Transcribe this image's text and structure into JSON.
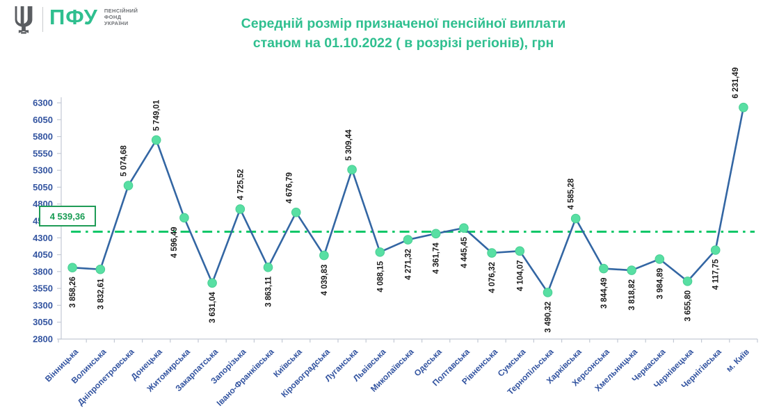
{
  "logo": {
    "abbr": "ПФУ",
    "name_line1": "ПЕНСІЙНИЙ",
    "name_line2": "ФОНД",
    "name_line3": "УКРАЇНИ"
  },
  "title": {
    "line1": "Середній розмір призначеної пенсійної виплати",
    "line2": "станом на 01.10.2022 ( в розрізі регіонів), грн"
  },
  "colors": {
    "title_green": "#2FBF8F",
    "axis_label_blue": "#3354A0",
    "series_line_blue": "#3366A3",
    "marker_mint": "#58DFA3",
    "average_dash_green": "#0FC768",
    "average_box_border_green": "#1E9B56",
    "average_box_text_green": "#169B52",
    "data_label_black": "#1b1b1b",
    "axis_gray": "#c3c9d4"
  },
  "chart_data": {
    "type": "line",
    "title": "Середній розмір призначеної пенсійної виплати станом на 01.10.2022 ( в розрізі регіонів), грн",
    "categories": [
      "Вінницька",
      "Волинська",
      "Дніпропетровська",
      "Донецька",
      "Житомирська",
      "Закарпатська",
      "Запорізька",
      "Івано-Франківська",
      "Київська",
      "Кіровоградська",
      "Луганська",
      "Львівська",
      "Миколаївська",
      "Одеська",
      "Полтавська",
      "Рівненська",
      "Сумська",
      "Тернопільська",
      "Харківська",
      "Херсонська",
      "Хмельницька",
      "Черкаська",
      "Чернівецька",
      "Чернігівська",
      "м. Київ"
    ],
    "values": [
      3858.26,
      3832.61,
      5074.68,
      5749.01,
      4596.49,
      3631.04,
      4725.52,
      3863.11,
      4676.79,
      4039.83,
      5309.44,
      4088.15,
      4271.32,
      4361.74,
      4445.45,
      4076.32,
      4104.07,
      3490.32,
      4585.28,
      3844.49,
      3818.82,
      3984.89,
      3655.8,
      4117.75,
      6231.49
    ],
    "value_labels": [
      "3 858,26",
      "3 832,61",
      "5 074,68",
      "5 749,01",
      "4 596,49",
      "3 631,04",
      "4 725,52",
      "3 863,11",
      "4 676,79",
      "4 039,83",
      "5 309,44",
      "4 088,15",
      "4 271,32",
      "4 361,74",
      "4 445,45",
      "4 076,32",
      "4 104,07",
      "3 490,32",
      "4 585,28",
      "3 844,49",
      "3 818,82",
      "3 984,89",
      "3 655,80",
      "4 117,75",
      "6 231,49"
    ],
    "label_above": [
      false,
      false,
      true,
      true,
      false,
      false,
      true,
      false,
      true,
      false,
      true,
      false,
      false,
      false,
      false,
      false,
      false,
      false,
      true,
      false,
      false,
      false,
      false,
      false,
      true
    ],
    "average_line": {
      "label": "4 539,36",
      "value": 4539.36
    },
    "ylim": [
      2800,
      6300
    ],
    "ytick_step": 250,
    "xlabel": "",
    "ylabel": "",
    "grid": false,
    "legend": false
  }
}
